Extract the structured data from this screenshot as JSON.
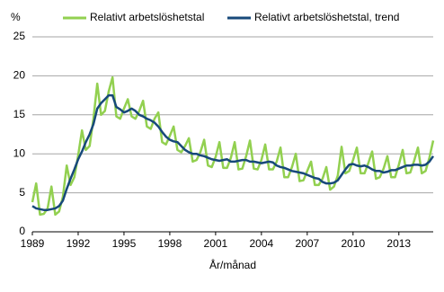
{
  "chart_data": {
    "type": "line",
    "x_label": "År/månad",
    "y_label": "%",
    "x": [
      1989,
      1989.25,
      1989.5,
      1989.75,
      1990,
      1990.25,
      1990.5,
      1990.75,
      1991,
      1991.25,
      1991.5,
      1991.75,
      1992,
      1992.25,
      1992.5,
      1992.75,
      1993,
      1993.25,
      1993.5,
      1993.75,
      1994,
      1994.25,
      1994.5,
      1994.75,
      1995,
      1995.25,
      1995.5,
      1995.75,
      1996,
      1996.25,
      1996.5,
      1996.75,
      1997,
      1997.25,
      1997.5,
      1997.75,
      1998,
      1998.25,
      1998.5,
      1998.75,
      1999,
      1999.25,
      1999.5,
      1999.75,
      2000,
      2000.25,
      2000.5,
      2000.75,
      2001,
      2001.25,
      2001.5,
      2001.75,
      2002,
      2002.25,
      2002.5,
      2002.75,
      2003,
      2003.25,
      2003.5,
      2003.75,
      2004,
      2004.25,
      2004.5,
      2004.75,
      2005,
      2005.25,
      2005.5,
      2005.75,
      2006,
      2006.25,
      2006.5,
      2006.75,
      2007,
      2007.25,
      2007.5,
      2007.75,
      2008,
      2008.25,
      2008.5,
      2008.75,
      2009,
      2009.25,
      2009.5,
      2009.75,
      2010,
      2010.25,
      2010.5,
      2010.75,
      2011,
      2011.25,
      2011.5,
      2011.75,
      2012,
      2012.25,
      2012.5,
      2012.75,
      2013,
      2013.25,
      2013.5,
      2013.75,
      2014,
      2014.25,
      2014.5,
      2014.75,
      2015,
      2015.25
    ],
    "series": [
      {
        "name": "Relativt arbetslöshetstal",
        "color": "#92d050",
        "width": 2.5,
        "values": [
          3.8,
          6.2,
          2.2,
          2.3,
          3.0,
          5.8,
          2.2,
          2.6,
          4.5,
          8.5,
          6.0,
          7.0,
          9.8,
          13.0,
          10.5,
          11.0,
          14.5,
          19.0,
          15.0,
          15.5,
          18.0,
          19.8,
          14.8,
          14.5,
          15.8,
          17.0,
          14.8,
          14.5,
          15.5,
          16.8,
          13.5,
          13.2,
          14.5,
          15.3,
          11.5,
          11.2,
          12.3,
          13.5,
          10.5,
          10.2,
          11.0,
          12.0,
          9.0,
          9.2,
          10.2,
          11.8,
          8.5,
          8.3,
          9.6,
          11.5,
          8.2,
          8.2,
          9.5,
          11.5,
          8.0,
          8.1,
          9.7,
          11.7,
          8.1,
          8.0,
          9.2,
          11.2,
          8.0,
          8.0,
          9.0,
          10.8,
          7.0,
          7.0,
          8.3,
          10.0,
          6.5,
          6.6,
          7.8,
          9.0,
          6.0,
          6.0,
          6.8,
          8.3,
          5.4,
          5.8,
          7.2,
          10.9,
          7.5,
          7.8,
          9.2,
          10.8,
          7.5,
          7.5,
          8.8,
          10.3,
          6.8,
          7.0,
          8.1,
          9.7,
          7.0,
          7.0,
          8.6,
          10.5,
          7.5,
          7.6,
          9.1,
          10.8,
          7.5,
          7.8,
          9.5,
          11.7
        ]
      },
      {
        "name": "Relativt arbetslöshetstal, trend",
        "color": "#17497a",
        "width": 2.5,
        "values": [
          3.3,
          3.0,
          2.9,
          2.8,
          2.8,
          2.9,
          3.0,
          3.3,
          4.0,
          5.5,
          6.8,
          8.0,
          9.3,
          10.3,
          11.5,
          12.5,
          13.8,
          15.8,
          16.5,
          17.0,
          17.5,
          17.5,
          16.0,
          15.7,
          15.3,
          15.5,
          15.8,
          15.5,
          15.0,
          14.8,
          14.5,
          14.3,
          14.0,
          13.5,
          12.8,
          12.2,
          11.8,
          11.6,
          11.5,
          11.0,
          10.5,
          10.2,
          10.0,
          10.0,
          9.8,
          9.7,
          9.5,
          9.3,
          9.2,
          9.1,
          9.2,
          9.3,
          9.0,
          9.0,
          9.1,
          9.2,
          9.2,
          9.0,
          9.0,
          8.9,
          8.8,
          8.9,
          9.0,
          8.9,
          8.5,
          8.3,
          8.2,
          8.0,
          7.8,
          7.7,
          7.6,
          7.5,
          7.3,
          7.1,
          6.9,
          6.8,
          6.4,
          6.2,
          6.2,
          6.3,
          6.6,
          7.3,
          8.0,
          8.6,
          8.7,
          8.5,
          8.4,
          8.5,
          8.3,
          8.0,
          7.8,
          7.8,
          7.6,
          7.7,
          7.9,
          7.9,
          8.1,
          8.3,
          8.5,
          8.5,
          8.6,
          8.6,
          8.5,
          8.6,
          9.0,
          9.7
        ]
      }
    ],
    "xlim": [
      1989,
      2015.25
    ],
    "xticks": [
      1989,
      1992,
      1995,
      1998,
      2001,
      2004,
      2007,
      2010,
      2013
    ],
    "ylim": [
      0,
      25
    ],
    "yticks": [
      0,
      5,
      10,
      15,
      20,
      25
    ],
    "grid": true
  }
}
